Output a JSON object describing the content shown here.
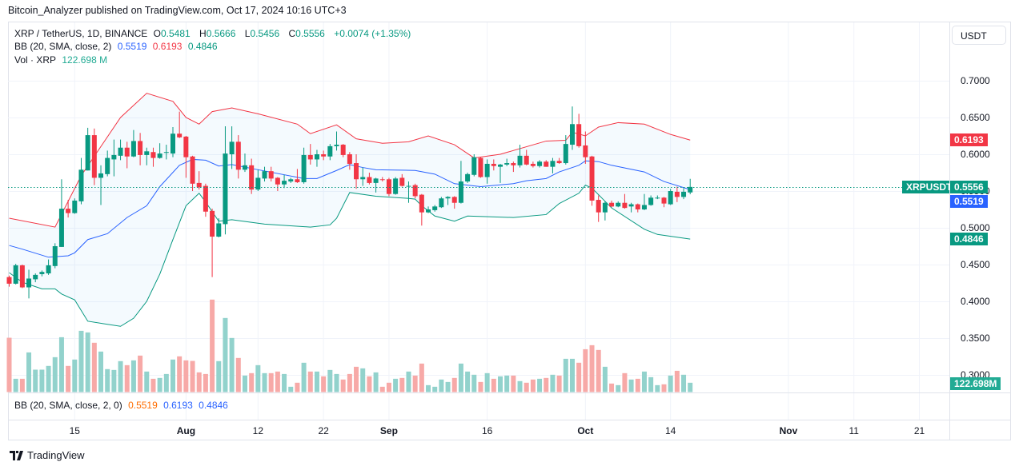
{
  "header": {
    "published": "Bitcoin_Analyzer published on TradingView.com, Oct 17, 2024 10:16 UTC+3"
  },
  "legend": {
    "symbol": "XRP / TetherUS, 1D, BINANCE",
    "o_label": "O",
    "o": "0.5481",
    "h_label": "H",
    "h": "0.5666",
    "l_label": "L",
    "l": "0.5456",
    "c_label": "C",
    "c": "0.5556",
    "change": "+0.0074 (+1.35%)",
    "bb_label": "BB (20, SMA, close, 2)",
    "bb_basis": "0.5519",
    "bb_upper": "0.6193",
    "bb_lower": "0.4846",
    "vol_label": "Vol · XRP",
    "vol_value": "122.698 M"
  },
  "bb_pane": {
    "label": "BB (20, SMA, close, 2, 0)",
    "basis": "0.5519",
    "upper": "0.6193",
    "lower": "0.4846"
  },
  "price_axis": {
    "currency_button": "USDT",
    "ticks": [
      "0.7000",
      "0.6500",
      "0.6000",
      "0.5500",
      "0.5000",
      "0.4500",
      "0.4000",
      "0.3500",
      "0.3000"
    ],
    "badges": {
      "bb_upper": "0.6193",
      "symbol": "XRPUSDT",
      "last_price": "0.5556",
      "bb_basis": "0.5519",
      "bb_lower": "0.4846",
      "volume": "122.698M"
    }
  },
  "time_axis": [
    {
      "label": "15",
      "date": "2024-07-15"
    },
    {
      "label": "Aug",
      "date": "2024-08-01"
    },
    {
      "label": "12",
      "date": "2024-08-12"
    },
    {
      "label": "22",
      "date": "2024-08-22"
    },
    {
      "label": "Sep",
      "date": "2024-09-01"
    },
    {
      "label": "16",
      "date": "2024-09-16"
    },
    {
      "label": "Oct",
      "date": "2024-10-01"
    },
    {
      "label": "14",
      "date": "2024-10-14"
    },
    {
      "label": "Nov",
      "date": "2024-11-01"
    },
    {
      "label": "11",
      "date": "2024-11-11"
    },
    {
      "label": "21",
      "date": "2024-11-21"
    }
  ],
  "footer": {
    "brand": "TradingView"
  },
  "colors": {
    "up": "#089981",
    "down": "#f23645",
    "bb_upper": "#f23645",
    "bb_basis": "#2962ff",
    "bb_lower": "#089981",
    "vol_up": "#92d2cc",
    "vol_down": "#f7a9a7",
    "band_fill": "#2196f3"
  },
  "chart_data": {
    "type": "candlestick",
    "symbol": "XRPUSDT",
    "interval": "1D",
    "ylim": [
      0.28,
      0.72
    ],
    "grid": true,
    "volume_unit": "M",
    "candles_columns": [
      "date",
      "open",
      "high",
      "low",
      "close",
      "volume"
    ],
    "candles": [
      [
        "2024-07-05",
        0.433,
        0.435,
        0.42,
        0.424,
        715
      ],
      [
        "2024-07-06",
        0.424,
        0.451,
        0.423,
        0.449,
        175
      ],
      [
        "2024-07-07",
        0.449,
        0.45,
        0.418,
        0.419,
        175
      ],
      [
        "2024-07-08",
        0.419,
        0.443,
        0.404,
        0.431,
        522
      ],
      [
        "2024-07-09",
        0.43,
        0.438,
        0.426,
        0.436,
        295
      ],
      [
        "2024-07-10",
        0.437,
        0.442,
        0.434,
        0.44,
        295
      ],
      [
        "2024-07-11",
        0.438,
        0.457,
        0.436,
        0.449,
        344
      ],
      [
        "2024-07-12",
        0.448,
        0.479,
        0.445,
        0.475,
        459
      ],
      [
        "2024-07-13",
        0.474,
        0.566,
        0.474,
        0.526,
        722
      ],
      [
        "2024-07-14",
        0.526,
        0.538,
        0.514,
        0.52,
        344
      ],
      [
        "2024-07-15",
        0.52,
        0.54,
        0.519,
        0.537,
        428
      ],
      [
        "2024-07-16",
        0.536,
        0.595,
        0.532,
        0.579,
        806
      ],
      [
        "2024-07-17",
        0.578,
        0.636,
        0.578,
        0.626,
        785
      ],
      [
        "2024-07-18",
        0.626,
        0.635,
        0.558,
        0.568,
        649
      ],
      [
        "2024-07-19",
        0.568,
        0.585,
        0.531,
        0.574,
        533
      ],
      [
        "2024-07-20",
        0.573,
        0.605,
        0.57,
        0.595,
        302
      ],
      [
        "2024-07-21",
        0.593,
        0.62,
        0.57,
        0.599,
        291
      ],
      [
        "2024-07-22",
        0.598,
        0.62,
        0.592,
        0.609,
        407
      ],
      [
        "2024-07-23",
        0.609,
        0.617,
        0.581,
        0.597,
        354
      ],
      [
        "2024-07-24",
        0.597,
        0.633,
        0.596,
        0.618,
        417
      ],
      [
        "2024-07-25",
        0.618,
        0.629,
        0.585,
        0.599,
        480
      ],
      [
        "2024-07-26",
        0.599,
        0.609,
        0.585,
        0.604,
        270
      ],
      [
        "2024-07-27",
        0.603,
        0.609,
        0.583,
        0.595,
        175
      ],
      [
        "2024-07-28",
        0.595,
        0.615,
        0.594,
        0.601,
        186
      ],
      [
        "2024-07-29",
        0.602,
        0.613,
        0.593,
        0.603,
        238
      ],
      [
        "2024-07-30",
        0.601,
        0.637,
        0.596,
        0.628,
        428
      ],
      [
        "2024-07-31",
        0.628,
        0.658,
        0.622,
        0.623,
        470
      ],
      [
        "2024-08-01",
        0.624,
        0.625,
        0.568,
        0.596,
        417
      ],
      [
        "2024-08-02",
        0.597,
        0.598,
        0.55,
        0.56,
        410
      ],
      [
        "2024-08-03",
        0.561,
        0.577,
        0.552,
        0.555,
        259
      ],
      [
        "2024-08-04",
        0.557,
        0.56,
        0.515,
        0.522,
        238
      ],
      [
        "2024-08-05",
        0.523,
        0.526,
        0.433,
        0.488,
        1217
      ],
      [
        "2024-08-06",
        0.488,
        0.513,
        0.487,
        0.506,
        407
      ],
      [
        "2024-08-07",
        0.505,
        0.638,
        0.491,
        0.601,
        975
      ],
      [
        "2024-08-08",
        0.6,
        0.638,
        0.58,
        0.617,
        712
      ],
      [
        "2024-08-09",
        0.617,
        0.626,
        0.567,
        0.579,
        449
      ],
      [
        "2024-08-10",
        0.579,
        0.601,
        0.576,
        0.585,
        217
      ],
      [
        "2024-08-11",
        0.585,
        0.594,
        0.546,
        0.552,
        249
      ],
      [
        "2024-08-12",
        0.552,
        0.579,
        0.55,
        0.568,
        354
      ],
      [
        "2024-08-13",
        0.567,
        0.583,
        0.563,
        0.577,
        249
      ],
      [
        "2024-08-14",
        0.577,
        0.583,
        0.563,
        0.567,
        249
      ],
      [
        "2024-08-15",
        0.568,
        0.569,
        0.55,
        0.559,
        270
      ],
      [
        "2024-08-16",
        0.559,
        0.572,
        0.554,
        0.564,
        238
      ],
      [
        "2024-08-17",
        0.563,
        0.568,
        0.561,
        0.566,
        70
      ],
      [
        "2024-08-18",
        0.566,
        0.58,
        0.561,
        0.562,
        123
      ],
      [
        "2024-08-19",
        0.562,
        0.609,
        0.56,
        0.599,
        386
      ],
      [
        "2024-08-20",
        0.599,
        0.614,
        0.586,
        0.593,
        270
      ],
      [
        "2024-08-21",
        0.593,
        0.606,
        0.583,
        0.6,
        270
      ],
      [
        "2024-08-22",
        0.6,
        0.605,
        0.592,
        0.597,
        207
      ],
      [
        "2024-08-23",
        0.597,
        0.614,
        0.592,
        0.611,
        291
      ],
      [
        "2024-08-24",
        0.611,
        0.631,
        0.605,
        0.613,
        238
      ],
      [
        "2024-08-25",
        0.613,
        0.614,
        0.596,
        0.599,
        165
      ],
      [
        "2024-08-26",
        0.6,
        0.603,
        0.579,
        0.587,
        238
      ],
      [
        "2024-08-27",
        0.588,
        0.6,
        0.553,
        0.566,
        333
      ],
      [
        "2024-08-28",
        0.566,
        0.582,
        0.557,
        0.569,
        312
      ],
      [
        "2024-08-29",
        0.569,
        0.575,
        0.559,
        0.561,
        207
      ],
      [
        "2024-08-30",
        0.561,
        0.568,
        0.548,
        0.567,
        259
      ],
      [
        "2024-08-31",
        0.566,
        0.569,
        0.563,
        0.5655,
        70
      ],
      [
        "2024-09-01",
        0.566,
        0.568,
        0.543,
        0.546,
        123
      ],
      [
        "2024-09-02",
        0.546,
        0.569,
        0.545,
        0.567,
        175
      ],
      [
        "2024-09-03",
        0.568,
        0.573,
        0.556,
        0.557,
        186
      ],
      [
        "2024-09-04",
        0.556,
        0.563,
        0.534,
        0.557,
        270
      ],
      [
        "2024-09-05",
        0.558,
        0.56,
        0.54,
        0.543,
        217
      ],
      [
        "2024-09-06",
        0.545,
        0.546,
        0.503,
        0.521,
        375
      ],
      [
        "2024-09-07",
        0.521,
        0.529,
        0.52,
        0.525,
        91
      ],
      [
        "2024-09-08",
        0.524,
        0.531,
        0.522,
        0.529,
        70
      ],
      [
        "2024-09-09",
        0.528,
        0.542,
        0.527,
        0.54,
        165
      ],
      [
        "2024-09-10",
        0.54,
        0.543,
        0.531,
        0.542,
        133
      ],
      [
        "2024-09-11",
        0.542,
        0.543,
        0.526,
        0.534,
        186
      ],
      [
        "2024-09-12",
        0.534,
        0.591,
        0.533,
        0.563,
        375
      ],
      [
        "2024-09-13",
        0.563,
        0.575,
        0.561,
        0.573,
        270
      ],
      [
        "2024-09-14",
        0.572,
        0.6,
        0.57,
        0.596,
        228
      ],
      [
        "2024-09-15",
        0.595,
        0.596,
        0.568,
        0.569,
        133
      ],
      [
        "2024-09-16",
        0.569,
        0.593,
        0.56,
        0.587,
        249
      ],
      [
        "2024-09-17",
        0.587,
        0.593,
        0.578,
        0.584,
        175
      ],
      [
        "2024-09-18",
        0.583,
        0.587,
        0.561,
        0.586,
        207
      ],
      [
        "2024-09-19",
        0.586,
        0.594,
        0.584,
        0.588,
        217
      ],
      [
        "2024-09-20",
        0.588,
        0.59,
        0.576,
        0.585,
        217
      ],
      [
        "2024-09-21",
        0.585,
        0.613,
        0.582,
        0.598,
        144
      ],
      [
        "2024-09-22",
        0.598,
        0.606,
        0.585,
        0.586,
        123
      ],
      [
        "2024-09-23",
        0.587,
        0.59,
        0.582,
        0.584,
        165
      ],
      [
        "2024-09-24",
        0.584,
        0.592,
        0.582,
        0.59,
        175
      ],
      [
        "2024-09-25",
        0.59,
        0.592,
        0.583,
        0.583,
        186
      ],
      [
        "2024-09-26",
        0.583,
        0.595,
        0.574,
        0.591,
        228
      ],
      [
        "2024-09-27",
        0.591,
        0.595,
        0.587,
        0.588,
        217
      ],
      [
        "2024-09-28",
        0.588,
        0.626,
        0.586,
        0.614,
        438
      ],
      [
        "2024-09-29",
        0.613,
        0.665,
        0.606,
        0.641,
        438
      ],
      [
        "2024-09-30",
        0.641,
        0.655,
        0.609,
        0.611,
        386
      ],
      [
        "2024-10-01",
        0.612,
        0.631,
        0.587,
        0.596,
        564
      ],
      [
        "2024-10-02",
        0.597,
        0.598,
        0.53,
        0.537,
        617
      ],
      [
        "2024-10-03",
        0.538,
        0.544,
        0.508,
        0.521,
        554
      ],
      [
        "2024-10-04",
        0.521,
        0.536,
        0.51,
        0.534,
        333
      ],
      [
        "2024-10-05",
        0.534,
        0.537,
        0.528,
        0.529,
        112
      ],
      [
        "2024-10-06",
        0.529,
        0.536,
        0.528,
        0.534,
        91
      ],
      [
        "2024-10-07",
        0.534,
        0.546,
        0.526,
        0.527,
        249
      ],
      [
        "2024-10-08",
        0.529,
        0.534,
        0.521,
        0.532,
        165
      ],
      [
        "2024-10-09",
        0.532,
        0.533,
        0.521,
        0.525,
        175
      ],
      [
        "2024-10-10",
        0.525,
        0.546,
        0.524,
        0.531,
        270
      ],
      [
        "2024-10-11",
        0.531,
        0.544,
        0.53,
        0.541,
        196
      ],
      [
        "2024-10-12",
        0.54,
        0.544,
        0.539,
        0.541,
        91
      ],
      [
        "2024-10-13",
        0.541,
        0.542,
        0.528,
        0.533,
        102
      ],
      [
        "2024-10-14",
        0.532,
        0.553,
        0.531,
        0.55,
        217
      ],
      [
        "2024-10-15",
        0.549,
        0.556,
        0.535,
        0.542,
        280
      ],
      [
        "2024-10-16",
        0.542,
        0.554,
        0.539,
        0.549,
        228
      ],
      [
        "2024-10-17",
        0.5481,
        0.5666,
        0.5456,
        0.5556,
        122.698
      ]
    ],
    "bb_upper": [
      [
        "2024-07-05",
        0.513
      ],
      [
        "2024-07-12",
        0.501
      ],
      [
        "2024-07-16",
        0.571
      ],
      [
        "2024-07-22",
        0.65
      ],
      [
        "2024-07-26",
        0.683
      ],
      [
        "2024-07-30",
        0.672
      ],
      [
        "2024-08-01",
        0.65
      ],
      [
        "2024-08-03",
        0.641
      ],
      [
        "2024-08-05",
        0.658
      ],
      [
        "2024-08-08",
        0.663
      ],
      [
        "2024-08-12",
        0.655
      ],
      [
        "2024-08-18",
        0.641
      ],
      [
        "2024-08-20",
        0.628
      ],
      [
        "2024-08-24",
        0.64
      ],
      [
        "2024-08-27",
        0.621
      ],
      [
        "2024-08-31",
        0.615
      ],
      [
        "2024-09-04",
        0.617
      ],
      [
        "2024-09-07",
        0.625
      ],
      [
        "2024-09-11",
        0.613
      ],
      [
        "2024-09-14",
        0.595
      ],
      [
        "2024-09-18",
        0.6
      ],
      [
        "2024-09-25",
        0.618
      ],
      [
        "2024-09-28",
        0.619
      ],
      [
        "2024-09-29",
        0.63
      ],
      [
        "2024-10-01",
        0.625
      ],
      [
        "2024-10-03",
        0.637
      ],
      [
        "2024-10-06",
        0.643
      ],
      [
        "2024-10-10",
        0.641
      ],
      [
        "2024-10-14",
        0.627
      ],
      [
        "2024-10-17",
        0.6193
      ]
    ],
    "bb_basis": [
      [
        "2024-07-05",
        0.476
      ],
      [
        "2024-07-07",
        0.471
      ],
      [
        "2024-07-11",
        0.46
      ],
      [
        "2024-07-14",
        0.462
      ],
      [
        "2024-07-15",
        0.466
      ],
      [
        "2024-07-17",
        0.484
      ],
      [
        "2024-07-20",
        0.492
      ],
      [
        "2024-07-23",
        0.514
      ],
      [
        "2024-07-26",
        0.53
      ],
      [
        "2024-07-28",
        0.556
      ],
      [
        "2024-07-31",
        0.585
      ],
      [
        "2024-08-02",
        0.593
      ],
      [
        "2024-08-04",
        0.592
      ],
      [
        "2024-08-06",
        0.584
      ],
      [
        "2024-08-08",
        0.586
      ],
      [
        "2024-08-12",
        0.579
      ],
      [
        "2024-08-19",
        0.567
      ],
      [
        "2024-08-21",
        0.567
      ],
      [
        "2024-08-24",
        0.578
      ],
      [
        "2024-08-26",
        0.586
      ],
      [
        "2024-08-28",
        0.582
      ],
      [
        "2024-08-30",
        0.579
      ],
      [
        "2024-09-05",
        0.578
      ],
      [
        "2024-09-08",
        0.573
      ],
      [
        "2024-09-11",
        0.56
      ],
      [
        "2024-09-15",
        0.556
      ],
      [
        "2024-09-20",
        0.56
      ],
      [
        "2024-09-22",
        0.564
      ],
      [
        "2024-09-25",
        0.567
      ],
      [
        "2024-09-27",
        0.576
      ],
      [
        "2024-09-30",
        0.585
      ],
      [
        "2024-10-01",
        0.591
      ],
      [
        "2024-10-03",
        0.59
      ],
      [
        "2024-10-05",
        0.585
      ],
      [
        "2024-10-10",
        0.576
      ],
      [
        "2024-10-13",
        0.563
      ],
      [
        "2024-10-17",
        0.5519
      ]
    ],
    "bb_lower": [
      [
        "2024-07-05",
        0.439
      ],
      [
        "2024-07-07",
        0.426
      ],
      [
        "2024-07-10",
        0.417
      ],
      [
        "2024-07-12",
        0.417
      ],
      [
        "2024-07-13",
        0.41
      ],
      [
        "2024-07-15",
        0.402
      ],
      [
        "2024-07-17",
        0.373
      ],
      [
        "2024-07-22",
        0.366
      ],
      [
        "2024-07-24",
        0.377
      ],
      [
        "2024-07-26",
        0.4
      ],
      [
        "2024-07-28",
        0.437
      ],
      [
        "2024-07-30",
        0.484
      ],
      [
        "2024-08-01",
        0.53
      ],
      [
        "2024-08-03",
        0.547
      ],
      [
        "2024-08-04",
        0.535
      ],
      [
        "2024-08-06",
        0.509
      ],
      [
        "2024-08-08",
        0.511
      ],
      [
        "2024-08-13",
        0.505
      ],
      [
        "2024-08-20",
        0.501
      ],
      [
        "2024-08-23",
        0.504
      ],
      [
        "2024-08-24",
        0.513
      ],
      [
        "2024-08-26",
        0.548
      ],
      [
        "2024-08-30",
        0.543
      ],
      [
        "2024-09-04",
        0.54
      ],
      [
        "2024-09-05",
        0.539
      ],
      [
        "2024-09-06",
        0.53
      ],
      [
        "2024-09-08",
        0.516
      ],
      [
        "2024-09-11",
        0.509
      ],
      [
        "2024-09-13",
        0.516
      ],
      [
        "2024-09-20",
        0.514
      ],
      [
        "2024-09-25",
        0.518
      ],
      [
        "2024-09-27",
        0.533
      ],
      [
        "2024-09-30",
        0.547
      ],
      [
        "2024-10-01",
        0.558
      ],
      [
        "2024-10-02",
        0.554
      ],
      [
        "2024-10-05",
        0.527
      ],
      [
        "2024-10-10",
        0.498
      ],
      [
        "2024-10-12",
        0.491
      ],
      [
        "2024-10-17",
        0.4846
      ]
    ],
    "last_price": 0.5556
  }
}
